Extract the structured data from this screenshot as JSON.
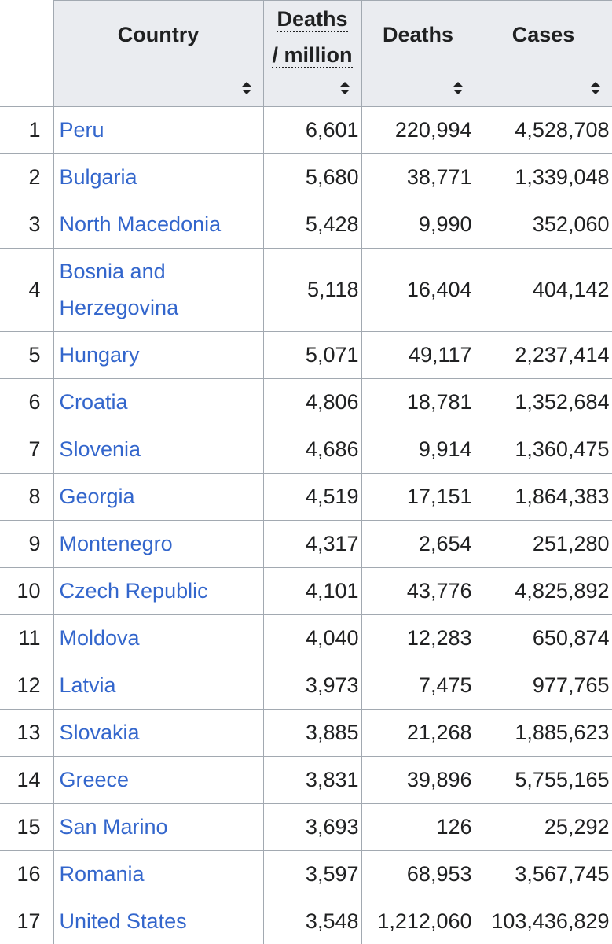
{
  "header": {
    "country": "Country",
    "deaths_per_million": [
      "Deaths",
      "/ million"
    ],
    "deaths": "Deaths",
    "cases": "Cases"
  },
  "rows": [
    [
      "1",
      "Peru",
      "6,601",
      "220,994",
      "4,528,708"
    ],
    [
      "2",
      "Bulgaria",
      "5,680",
      "38,771",
      "1,339,048"
    ],
    [
      "3",
      "North Macedonia",
      "5,428",
      "9,990",
      "352,060"
    ],
    [
      "4",
      "Bosnia and Herzegovina",
      "5,118",
      "16,404",
      "404,142"
    ],
    [
      "5",
      "Hungary",
      "5,071",
      "49,117",
      "2,237,414"
    ],
    [
      "6",
      "Croatia",
      "4,806",
      "18,781",
      "1,352,684"
    ],
    [
      "7",
      "Slovenia",
      "4,686",
      "9,914",
      "1,360,475"
    ],
    [
      "8",
      "Georgia",
      "4,519",
      "17,151",
      "1,864,383"
    ],
    [
      "9",
      "Montenegro",
      "4,317",
      "2,654",
      "251,280"
    ],
    [
      "10",
      "Czech Republic",
      "4,101",
      "43,776",
      "4,825,892"
    ],
    [
      "11",
      "Moldova",
      "4,040",
      "12,283",
      "650,874"
    ],
    [
      "12",
      "Latvia",
      "3,973",
      "7,475",
      "977,765"
    ],
    [
      "13",
      "Slovakia",
      "3,885",
      "21,268",
      "1,885,623"
    ],
    [
      "14",
      "Greece",
      "3,831",
      "39,896",
      "5,755,165"
    ],
    [
      "15",
      "San Marino",
      "3,693",
      "126",
      "25,292"
    ],
    [
      "16",
      "Romania",
      "3,597",
      "68,953",
      "3,567,745"
    ],
    [
      "17",
      "United States",
      "3,548",
      "1,212,060",
      "103,436,829"
    ]
  ]
}
